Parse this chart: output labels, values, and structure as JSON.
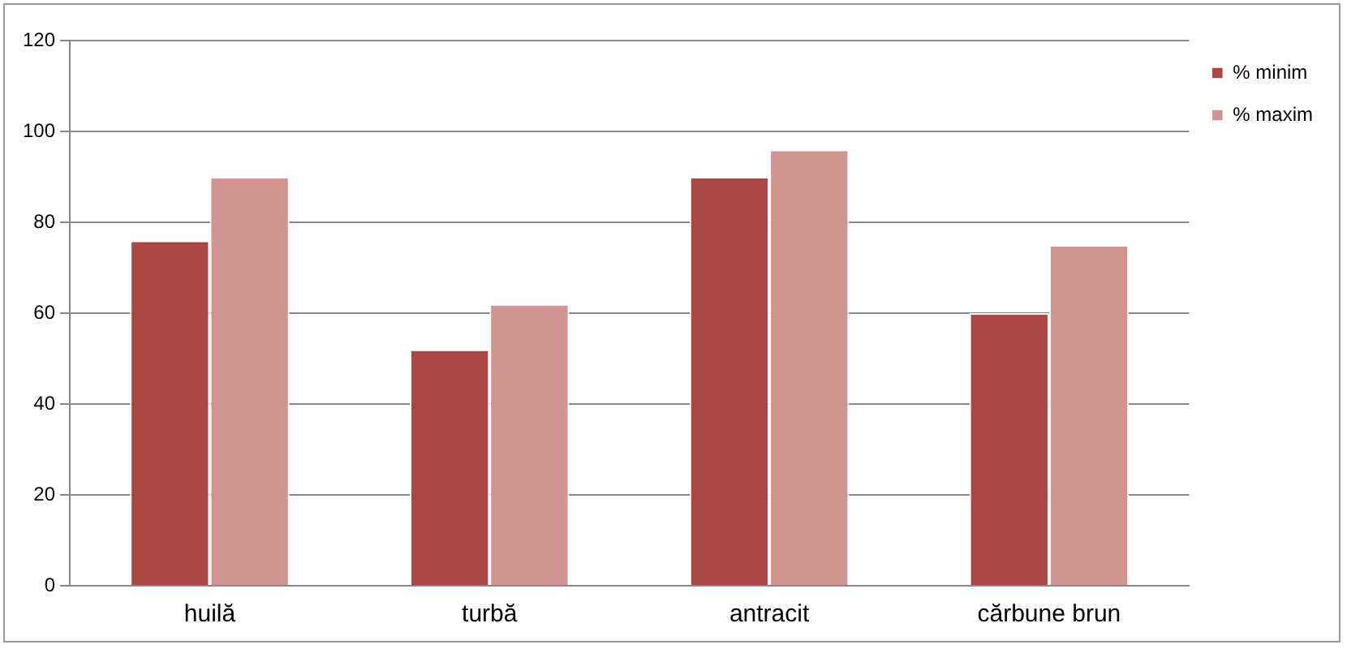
{
  "chart_data": {
    "type": "bar",
    "categories": [
      "huilă",
      "turbă",
      "antracit",
      "cărbune brun"
    ],
    "series": [
      {
        "name": "% minim",
        "color": "#aa4643",
        "values": [
          76,
          52,
          90,
          60
        ]
      },
      {
        "name": "% maxim",
        "color": "#d09593",
        "values": [
          90,
          62,
          96,
          75
        ]
      }
    ],
    "ylim": [
      0,
      120
    ],
    "yticks": [
      0,
      20,
      40,
      60,
      80,
      100,
      120
    ],
    "grid": "y",
    "legend": "top right"
  }
}
